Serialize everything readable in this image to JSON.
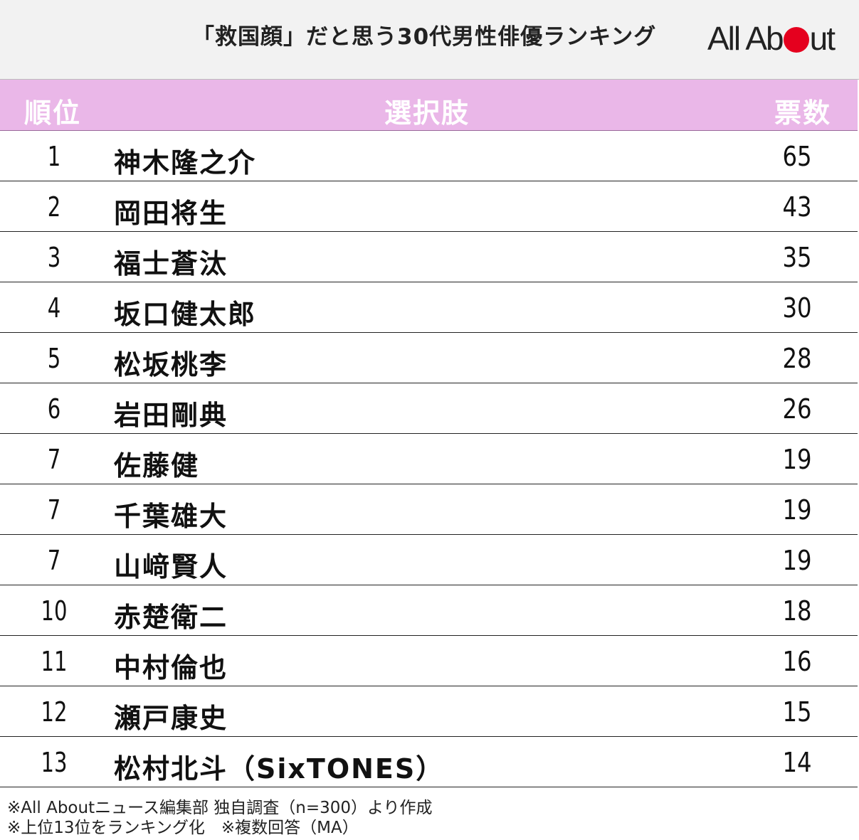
{
  "title": "「救国顔」だと思う30代男性俳優ランキング",
  "logo": {
    "prefix": "All Ab",
    "suffix": "ut",
    "dot_color": "#e5001e"
  },
  "colors": {
    "header_band": "#eab7e8",
    "title_band": "#f2f2f2"
  },
  "chart_data": {
    "type": "table",
    "columns": [
      "順位",
      "選択肢",
      "票数"
    ],
    "rows": [
      {
        "rank": "1",
        "name": "神木隆之介",
        "votes": 65
      },
      {
        "rank": "2",
        "name": "岡田将生",
        "votes": 43
      },
      {
        "rank": "3",
        "name": "福士蒼汰",
        "votes": 35
      },
      {
        "rank": "4",
        "name": "坂口健太郎",
        "votes": 30
      },
      {
        "rank": "5",
        "name": "松坂桃李",
        "votes": 28
      },
      {
        "rank": "6",
        "name": "岩田剛典",
        "votes": 26
      },
      {
        "rank": "7",
        "name": "佐藤健",
        "votes": 19
      },
      {
        "rank": "7",
        "name": "千葉雄大",
        "votes": 19
      },
      {
        "rank": "7",
        "name": "山﨑賢人",
        "votes": 19
      },
      {
        "rank": "10",
        "name": "赤楚衛二",
        "votes": 18
      },
      {
        "rank": "11",
        "name": "中村倫也",
        "votes": 16
      },
      {
        "rank": "12",
        "name": "瀬戸康史",
        "votes": 15
      },
      {
        "rank": "13",
        "name": "松村北斗（SixTONES）",
        "votes": 14
      }
    ]
  },
  "notes": [
    "※All Aboutニュース編集部 独自調査（n=300）より作成",
    "※上位13位をランキング化　※複数回答（MA）"
  ]
}
